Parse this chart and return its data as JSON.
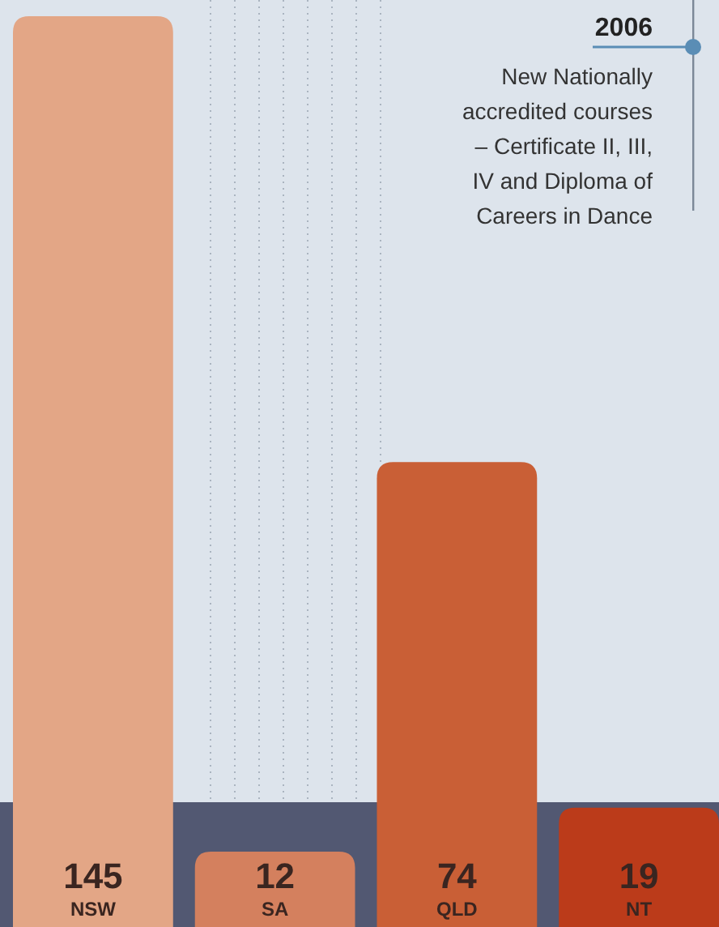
{
  "chart_data": {
    "type": "bar",
    "categories": [
      "NSW",
      "SA",
      "QLD",
      "NT"
    ],
    "values": [
      145,
      12,
      74,
      19
    ],
    "colors": [
      "#e3a686",
      "#d4805e",
      "#c95f36",
      "#bb3b1a"
    ],
    "data_labels": true,
    "annotations": [
      "2006",
      "New Nationally accredited courses – Certificate II, III, IV and Diploma of Careers in Dance"
    ]
  }
}
